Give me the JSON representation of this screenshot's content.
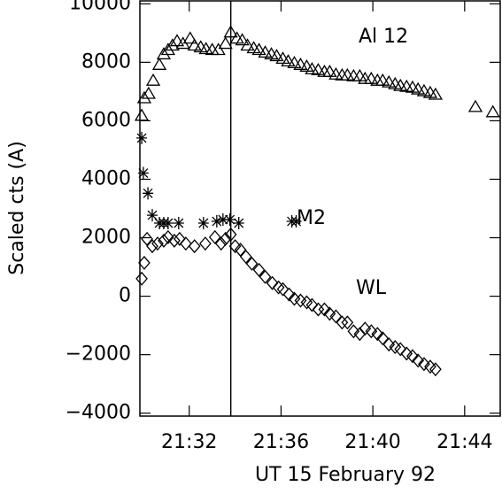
{
  "chart_data": {
    "type": "scatter",
    "xlabel": "UT 15 February 92",
    "ylabel": "Scaled cts (A)",
    "xlim": [
      29.85,
      45.55
    ],
    "ylim": [
      -4100,
      10100
    ],
    "xticks": [
      {
        "value": 32,
        "label": "21:32"
      },
      {
        "value": 36,
        "label": "21:36"
      },
      {
        "value": 40,
        "label": "21:40"
      },
      {
        "value": 44,
        "label": "21:44"
      }
    ],
    "yticks": [
      {
        "value": -4000,
        "label": "−4000"
      },
      {
        "value": -2000,
        "label": "−2000"
      },
      0,
      2000,
      4000,
      6000,
      8000,
      10000
    ],
    "vline": 33.81,
    "series": [
      {
        "name": "Al 12",
        "color": "#000000",
        "marker": "triangle",
        "x": [
          29.93,
          30.04,
          30.23,
          30.43,
          30.7,
          30.89,
          31.08,
          31.27,
          31.47,
          31.73,
          32.04,
          32.23,
          32.5,
          32.73,
          33.0,
          33.27,
          33.58,
          33.81,
          34.08,
          34.31,
          34.54,
          34.81,
          35.04,
          35.31,
          35.58,
          35.81,
          36.08,
          36.31,
          36.58,
          36.85,
          37.12,
          37.35,
          37.62,
          37.89,
          38.12,
          38.39,
          38.66,
          38.89,
          39.16,
          39.43,
          39.66,
          39.93,
          40.2,
          40.43,
          40.7,
          40.97,
          41.2,
          41.47,
          41.73,
          41.97,
          42.23,
          42.5,
          42.73,
          44.47,
          45.23
        ],
        "values": [
          6170,
          6770,
          6920,
          7370,
          7910,
          8270,
          8420,
          8570,
          8720,
          8630,
          8810,
          8570,
          8510,
          8450,
          8420,
          8420,
          8630,
          9020,
          8810,
          8750,
          8570,
          8480,
          8420,
          8330,
          8270,
          8210,
          8120,
          8030,
          7970,
          7910,
          7850,
          7760,
          7730,
          7670,
          7670,
          7580,
          7550,
          7550,
          7520,
          7520,
          7430,
          7430,
          7370,
          7370,
          7310,
          7250,
          7190,
          7160,
          7130,
          7070,
          7010,
          6950,
          6890,
          6470,
          6290
        ]
      },
      {
        "name": "M2",
        "color": "#000000",
        "marker": "asterisk",
        "x": [
          29.93,
          30.0,
          30.2,
          30.39,
          30.7,
          30.89,
          31.08,
          31.54,
          32.62,
          33.2,
          33.47,
          33.77,
          34.16,
          36.47,
          36.66
        ],
        "values": [
          5410,
          4210,
          3520,
          2770,
          2500,
          2500,
          2500,
          2500,
          2500,
          2560,
          2620,
          2620,
          2500,
          2560,
          2560
        ]
      },
      {
        "name": "WL",
        "color": "#000000",
        "marker": "diamond",
        "x": [
          29.93,
          30.04,
          30.16,
          30.39,
          30.62,
          30.89,
          31.08,
          31.35,
          31.58,
          31.85,
          32.23,
          32.7,
          33.12,
          33.39,
          33.58,
          33.81,
          34.0,
          34.23,
          34.47,
          34.73,
          35.04,
          35.31,
          35.62,
          35.89,
          36.08,
          36.35,
          36.58,
          36.85,
          37.12,
          37.35,
          37.62,
          37.89,
          38.12,
          38.39,
          38.66,
          38.89,
          39.16,
          39.43,
          39.66,
          39.93,
          40.2,
          40.43,
          40.7,
          40.97,
          41.2,
          41.47,
          41.73,
          41.97,
          42.23,
          42.5,
          42.73
        ],
        "values": [
          600,
          1140,
          1960,
          1710,
          1800,
          1900,
          2020,
          1900,
          1960,
          1800,
          1710,
          1800,
          2020,
          1800,
          1960,
          2110,
          1710,
          1590,
          1350,
          1110,
          900,
          660,
          450,
          300,
          240,
          60,
          -90,
          -150,
          -210,
          -300,
          -450,
          -450,
          -600,
          -690,
          -900,
          -900,
          -1200,
          -1290,
          -1110,
          -1200,
          -1290,
          -1440,
          -1650,
          -1740,
          -1810,
          -1960,
          -2050,
          -2200,
          -2320,
          -2410,
          -2500
        ]
      }
    ]
  }
}
